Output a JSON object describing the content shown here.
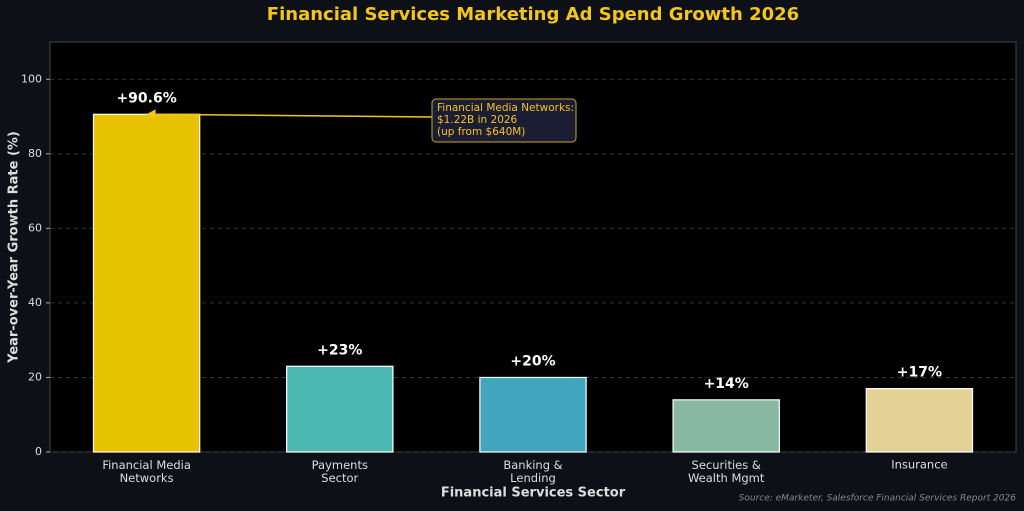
{
  "chart_data": {
    "type": "bar",
    "title": "Financial Services Marketing Ad Spend Growth 2026",
    "x_label": "Financial Services Sector",
    "y_label": "Year-over-Year Growth Rate (%)",
    "categories": [
      "Financial Media\nNetworks",
      "Payments\nSector",
      "Banking &\nLending",
      "Securities &\nWealth Mgmt",
      "Insurance"
    ],
    "values": [
      90.6,
      23,
      20,
      14,
      17
    ],
    "value_labels": [
      "+90.6%",
      "+23%",
      "+20%",
      "+14%",
      "+17%"
    ],
    "colors": [
      "#e6c200",
      "#4ab8b0",
      "#42a5bf",
      "#88b8a0",
      "#e3d196"
    ],
    "ylim": [
      0,
      110
    ],
    "yticks": [
      0,
      20,
      40,
      60,
      80,
      100
    ],
    "grid": true,
    "annotation": "Financial Media Networks:\n$1.22B in 2026\n(up from $640M)",
    "source": "Source: eMarketer, Salesforce Financial Services Report 2026"
  }
}
